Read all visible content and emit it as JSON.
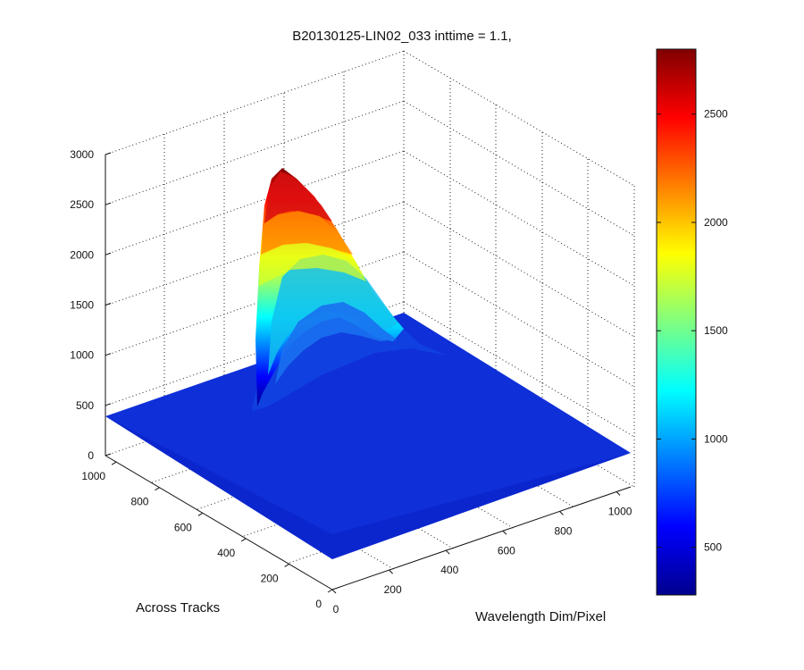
{
  "chart_data": {
    "type": "surface",
    "title": "B20130125-LIN02_033 inttime = 1.1,",
    "xlabel": "Wavelength Dim/Pixel",
    "ylabel": "Across Tracks",
    "zlabel": "",
    "x_ticks": [
      "0",
      "200",
      "400",
      "600",
      "800",
      "1000"
    ],
    "y_ticks": [
      "0",
      "200",
      "400",
      "600",
      "800",
      "1000"
    ],
    "z_ticks": [
      "0",
      "500",
      "1000",
      "1500",
      "2000",
      "2500",
      "3000"
    ],
    "xlim": [
      0,
      1050
    ],
    "ylim": [
      0,
      1050
    ],
    "zlim": [
      0,
      3000
    ],
    "grid": true,
    "colormap": "jet",
    "background_level": 370,
    "peak": {
      "z": 2800,
      "x_range": [
        0,
        1000
      ],
      "y_range": [
        580,
        1000
      ]
    },
    "colorbar": {
      "limits": [
        280,
        2800
      ],
      "ticks": [
        "500",
        "1000",
        "1500",
        "2000",
        "2500"
      ],
      "tick_values": [
        500,
        1000,
        1500,
        2000,
        2500
      ]
    }
  }
}
